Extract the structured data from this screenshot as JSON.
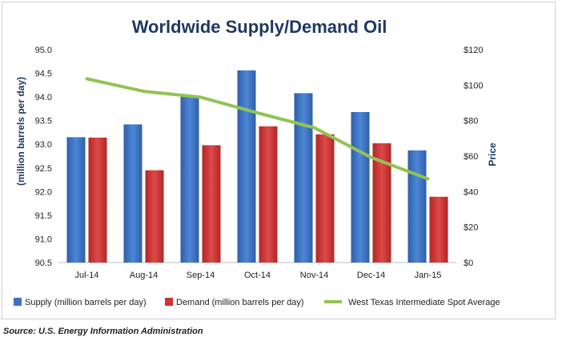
{
  "chart_data": {
    "type": "bar",
    "title": "Worldwide Supply/Demand Oil",
    "categories": [
      "Jul-14",
      "Aug-14",
      "Sep-14",
      "Oct-14",
      "Nov-14",
      "Dec-14",
      "Jan-15"
    ],
    "series": [
      {
        "name": "Supply (million barrels per day)",
        "kind": "bar",
        "axis": "left",
        "color": "#3b73c4",
        "values": [
          93.15,
          93.42,
          94.0,
          94.56,
          94.08,
          93.68,
          92.87
        ]
      },
      {
        "name": "Demand (million barrels per day)",
        "kind": "bar",
        "axis": "left",
        "color": "#cf3434",
        "values": [
          93.14,
          92.45,
          92.98,
          93.38,
          93.21,
          93.02,
          91.89
        ]
      },
      {
        "name": "West Texas Intermediate Spot Average",
        "kind": "line",
        "axis": "right",
        "color": "#92c353",
        "values": [
          103.6,
          96.5,
          93.2,
          84.4,
          76.0,
          59.3,
          47.2
        ]
      }
    ],
    "ylabel": "(million barrels per day)",
    "ylim": [
      90.5,
      95.0
    ],
    "yticks": [
      "90.5",
      "91.0",
      "91.5",
      "92.0",
      "92.5",
      "93.0",
      "93.5",
      "94.0",
      "94.5",
      "95.0"
    ],
    "y2label": "Price",
    "y2lim": [
      0,
      120
    ],
    "y2ticks": [
      "$0",
      "$20",
      "$40",
      "$60",
      "$80",
      "$100",
      "$120"
    ],
    "grid": false,
    "legend": "bottom"
  },
  "source": "Source: U.S. Energy Information Administration"
}
